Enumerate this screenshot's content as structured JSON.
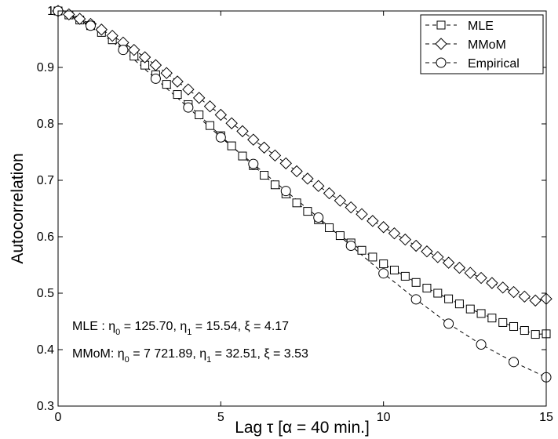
{
  "chart_data": {
    "type": "line",
    "xlabel": "Lag τ [α = 40 min.]",
    "ylabel": "Autocorrelation",
    "xlim": [
      0,
      15
    ],
    "ylim": [
      0.3,
      1.0
    ],
    "xticks": [
      "0",
      "5",
      "10",
      "15"
    ],
    "xtick_values": [
      0,
      5,
      10,
      15
    ],
    "yticks": [
      "0.3",
      "0.4",
      "0.5",
      "0.6",
      "0.7",
      "0.8",
      "0.9",
      "1"
    ],
    "ytick_values": [
      0.3,
      0.4,
      0.5,
      0.6,
      0.7,
      0.8,
      0.9,
      1.0
    ],
    "grid": false,
    "legend_position": "top-right",
    "series": [
      {
        "name": "MLE",
        "marker": "square",
        "line": "dashed",
        "x": [
          0,
          0.333,
          0.667,
          1.0,
          1.333,
          1.667,
          2.0,
          2.333,
          2.667,
          3.0,
          3.333,
          3.667,
          4.0,
          4.333,
          4.667,
          5.0,
          5.333,
          5.667,
          6.0,
          6.333,
          6.667,
          7.0,
          7.333,
          7.667,
          8.0,
          8.333,
          8.667,
          9.0,
          9.333,
          9.667,
          10.0,
          10.333,
          10.667,
          11.0,
          11.333,
          11.667,
          12.0,
          12.333,
          12.667,
          13.0,
          13.333,
          13.667,
          14.0,
          14.333,
          14.667,
          15.0
        ],
        "y": [
          1.0,
          0.993,
          0.984,
          0.974,
          0.962,
          0.949,
          0.935,
          0.92,
          0.904,
          0.887,
          0.87,
          0.852,
          0.834,
          0.816,
          0.797,
          0.779,
          0.761,
          0.743,
          0.726,
          0.709,
          0.692,
          0.676,
          0.66,
          0.645,
          0.63,
          0.616,
          0.602,
          0.589,
          0.576,
          0.564,
          0.552,
          0.541,
          0.53,
          0.519,
          0.509,
          0.5,
          0.49,
          0.481,
          0.472,
          0.464,
          0.456,
          0.448,
          0.441,
          0.434,
          0.427,
          0.428
        ]
      },
      {
        "name": "MMoM",
        "marker": "diamond",
        "line": "dashed",
        "x": [
          0,
          0.333,
          0.667,
          1.0,
          1.333,
          1.667,
          2.0,
          2.333,
          2.667,
          3.0,
          3.333,
          3.667,
          4.0,
          4.333,
          4.667,
          5.0,
          5.333,
          5.667,
          6.0,
          6.333,
          6.667,
          7.0,
          7.333,
          7.667,
          8.0,
          8.333,
          8.667,
          9.0,
          9.333,
          9.667,
          10.0,
          10.333,
          10.667,
          11.0,
          11.333,
          11.667,
          12.0,
          12.333,
          12.667,
          13.0,
          13.333,
          13.667,
          14.0,
          14.333,
          14.667,
          15.0
        ],
        "y": [
          1.0,
          0.994,
          0.986,
          0.977,
          0.967,
          0.956,
          0.944,
          0.931,
          0.918,
          0.904,
          0.89,
          0.875,
          0.861,
          0.846,
          0.831,
          0.816,
          0.801,
          0.787,
          0.772,
          0.758,
          0.744,
          0.73,
          0.716,
          0.703,
          0.69,
          0.677,
          0.664,
          0.652,
          0.64,
          0.628,
          0.617,
          0.606,
          0.595,
          0.584,
          0.574,
          0.564,
          0.554,
          0.545,
          0.536,
          0.527,
          0.518,
          0.51,
          0.502,
          0.494,
          0.487,
          0.49
        ]
      },
      {
        "name": "Empirical",
        "marker": "circle",
        "line": "dashed",
        "x": [
          0,
          1,
          2,
          3,
          4,
          5,
          6,
          7,
          8,
          9,
          10,
          11,
          12,
          13,
          14,
          15
        ],
        "y": [
          1.0,
          0.974,
          0.931,
          0.88,
          0.829,
          0.776,
          0.729,
          0.681,
          0.634,
          0.584,
          0.535,
          0.489,
          0.446,
          0.409,
          0.378,
          0.351
        ]
      }
    ],
    "annotations": [
      {
        "id": "mle",
        "prefix": "MLE : η",
        "sub0": "0",
        "mid0": " = 125.70, η",
        "sub1": "1",
        "mid1": " = 15.54, ξ = 4.17"
      },
      {
        "id": "mmom",
        "prefix": "MMoM: η",
        "sub0": "0",
        "mid0": " = 7 721.89, η",
        "sub1": "1",
        "mid1": " = 32.51, ξ = 3.53"
      }
    ]
  }
}
